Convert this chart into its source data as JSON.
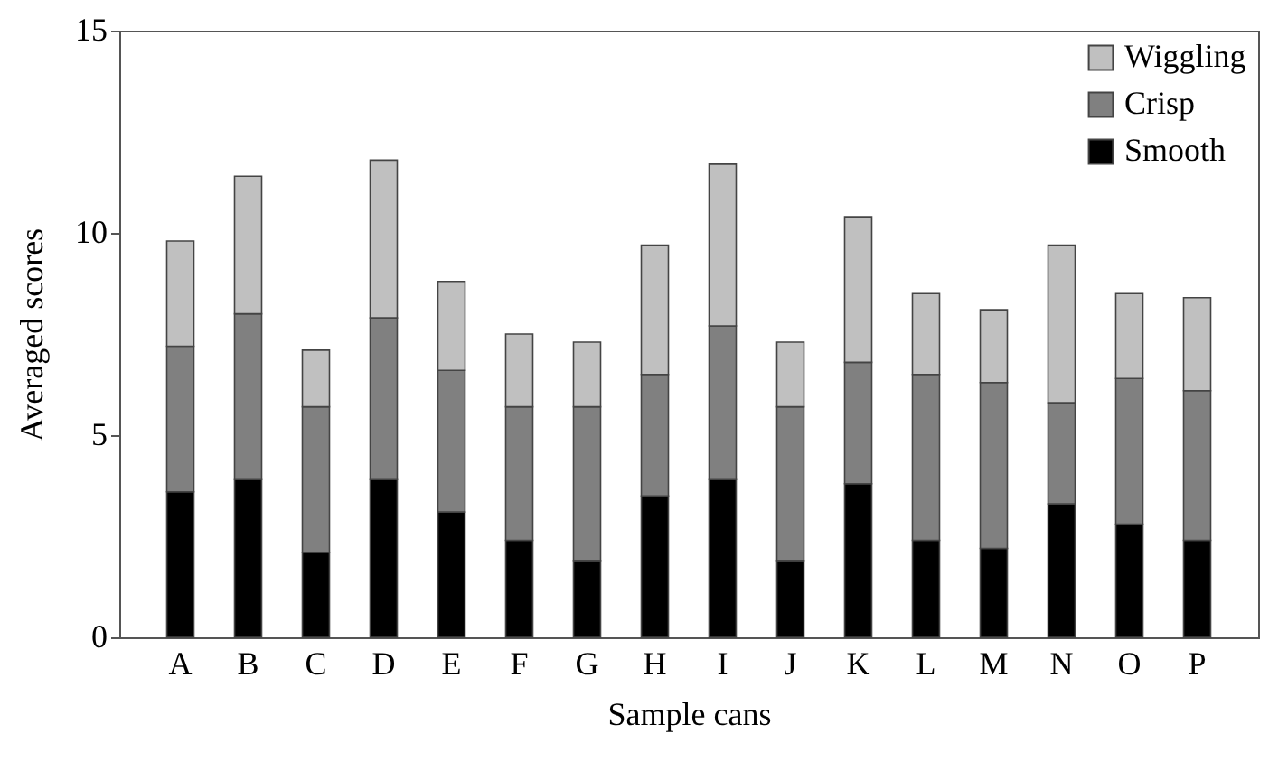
{
  "chart_data": {
    "type": "bar",
    "stacked": true,
    "xlabel": "Sample cans",
    "ylabel": "Averaged scores",
    "categories": [
      "A",
      "B",
      "C",
      "D",
      "E",
      "F",
      "G",
      "H",
      "I",
      "J",
      "K",
      "L",
      "M",
      "N",
      "O",
      "P"
    ],
    "series": [
      {
        "name": "Smooth",
        "color": "#000000",
        "values": [
          3.6,
          3.9,
          2.1,
          3.9,
          3.1,
          2.4,
          1.9,
          3.5,
          3.9,
          1.9,
          3.8,
          2.4,
          2.2,
          3.3,
          2.8,
          2.4
        ]
      },
      {
        "name": "Crisp",
        "color": "#808080",
        "values": [
          3.6,
          4.1,
          3.6,
          4.0,
          3.5,
          3.3,
          3.8,
          3.0,
          3.8,
          3.8,
          3.0,
          4.1,
          4.1,
          2.5,
          3.6,
          3.7
        ]
      },
      {
        "name": "Wiggling",
        "color": "#c0c0c0",
        "values": [
          2.6,
          3.4,
          1.4,
          3.9,
          2.2,
          1.8,
          1.6,
          3.2,
          4.0,
          1.6,
          3.6,
          2.0,
          1.8,
          3.9,
          2.1,
          2.3
        ]
      }
    ],
    "ylim": [
      0,
      15
    ],
    "yticks": [
      0,
      5,
      10,
      15
    ],
    "legend": "top right"
  }
}
